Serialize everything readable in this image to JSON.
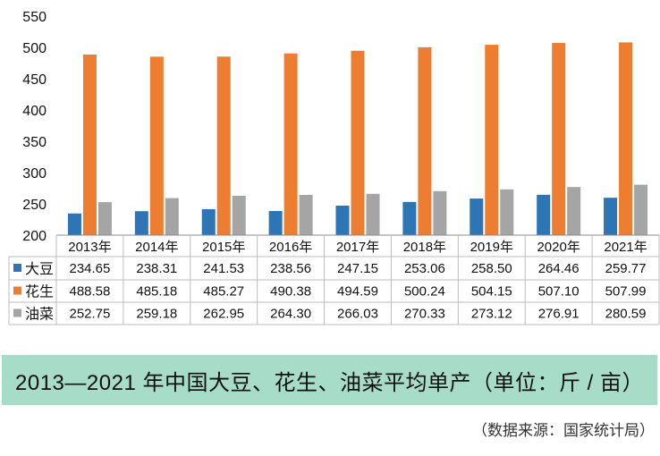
{
  "chart_data": {
    "type": "bar",
    "categories": [
      "2013年",
      "2014年",
      "2015年",
      "2016年",
      "2017年",
      "2018年",
      "2019年",
      "2020年",
      "2021年"
    ],
    "series": [
      {
        "name": "大豆",
        "color": "#2e75b6",
        "values": [
          234.65,
          238.31,
          241.53,
          238.56,
          247.15,
          253.06,
          258.5,
          264.46,
          259.77
        ],
        "labels": [
          "234.65",
          "238.31",
          "241.53",
          "238.56",
          "247.15",
          "253.06",
          "258.50",
          "264.46",
          "259.77"
        ]
      },
      {
        "name": "花生",
        "color": "#ed7d31",
        "values": [
          488.58,
          485.18,
          485.27,
          490.38,
          494.59,
          500.24,
          504.15,
          507.1,
          507.99
        ],
        "labels": [
          "488.58",
          "485.18",
          "485.27",
          "490.38",
          "494.59",
          "500.24",
          "504.15",
          "507.10",
          "507.99"
        ]
      },
      {
        "name": "油菜",
        "color": "#a5a5a5",
        "values": [
          252.75,
          259.18,
          262.95,
          264.3,
          266.03,
          270.33,
          273.12,
          276.91,
          280.59
        ],
        "labels": [
          "252.75",
          "259.18",
          "262.95",
          "264.30",
          "266.03",
          "270.33",
          "273.12",
          "276.91",
          "280.59"
        ]
      }
    ],
    "ylim": [
      200,
      550
    ],
    "yticks": [
      "200",
      "250",
      "300",
      "350",
      "400",
      "450",
      "500",
      "550"
    ],
    "grid": false,
    "legend": "data-table"
  },
  "caption": "2013—2021 年中国大豆、花生、油菜平均单产（单位：斤 / 亩）",
  "source": "（数据来源：国家统计局）"
}
